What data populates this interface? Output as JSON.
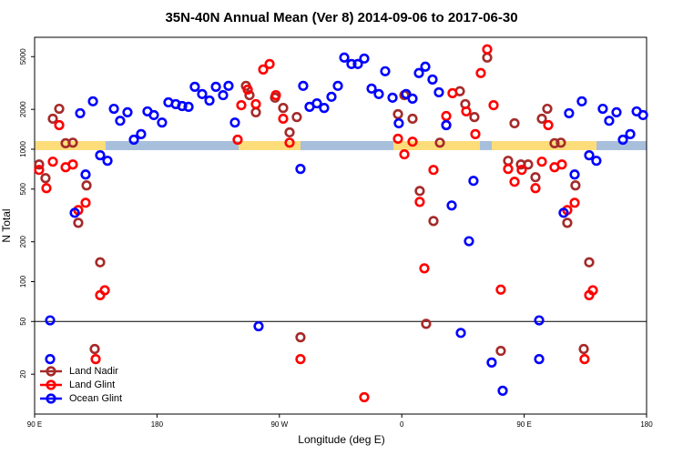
{
  "chart_data": {
    "type": "scatter",
    "title": "35N-40N Annual Mean (Ver 8)   2014-09-06 to 2017-06-30",
    "x_label": "Longitude (deg E)",
    "y_label": "N Total",
    "xlim": [
      90,
      540
    ],
    "xticks": [
      {
        "value": 90,
        "label": "90 E"
      },
      180,
      {
        "value": 270,
        "label": "90 W"
      },
      {
        "value": 360,
        "label": "0"
      },
      {
        "value": 450,
        "label": "90 E"
      },
      {
        "value": 540,
        "label": "180"
      }
    ],
    "ylim": [
      10,
      7000
    ],
    "y_log": true,
    "yticks": [
      20,
      50,
      100,
      200,
      500,
      1000,
      2000,
      5000
    ],
    "hline": 50,
    "legend": "bottom-left",
    "series": [
      {
        "name": "Land Nadir",
        "color": "#a52a2a",
        "x": [
          93.3,
          98.0,
          103.4,
          108.1,
          112.8,
          118.1,
          122.1,
          128.2,
          138.2,
          245.4,
          248.0,
          252.7,
          266.8,
          272.8,
          277.5,
          282.8,
          285.5,
          357.2,
          361.9,
          367.9,
          373.2,
          383.3,
          388.0,
          392.7,
          402.7,
          406.7,
          413.4,
          422.8,
          432.8,
          438.2,
          442.9,
          447.6,
          452.9,
          458.3,
          463.0,
          467.0,
          472.3,
          477.0,
          481.7,
          487.7,
          497.8,
          493.8,
          134.2,
          377.9
        ],
        "values": [
          767,
          605,
          1700,
          2020,
          1110,
          1120,
          278,
          533,
          140,
          3010,
          2560,
          1900,
          2450,
          2050,
          1340,
          1750,
          38,
          1840,
          2560,
          1700,
          484,
          287,
          1120,
          1520,
          2740,
          2190,
          1750,
          4920,
          30,
          818,
          1570,
          767,
          767,
          615,
          1700,
          2020,
          1110,
          1120,
          278,
          533,
          140,
          31,
          31,
          48
        ]
      },
      {
        "name": "Land Glint",
        "color": "#ff0000",
        "x": [
          93.3,
          98.7,
          103.4,
          108.1,
          112.8,
          118.1,
          122.1,
          127.5,
          134.9,
          138.2,
          141.6,
          239.3,
          242.0,
          246.7,
          252.7,
          258.1,
          262.8,
          267.4,
          272.8,
          277.5,
          285.5,
          332.4,
          357.2,
          361.9,
          367.9,
          373.2,
          376.6,
          383.3,
          392.7,
          397.3,
          407.4,
          414.1,
          418.1,
          422.8,
          427.5,
          432.8,
          438.2,
          442.9,
          448.2,
          458.3,
          463.0,
          467.7,
          472.3,
          477.7,
          481.7,
          487.1,
          494.4,
          497.8,
          500.5
        ],
        "values": [
          698,
          508,
          805,
          1520,
          731,
          767,
          347,
          394,
          26,
          79,
          86,
          1180,
          2150,
          2820,
          2190,
          4000,
          4400,
          2560,
          1700,
          1120,
          26,
          13.4,
          1200,
          915,
          1140,
          400,
          126,
          698,
          1780,
          2650,
          1930,
          1300,
          3760,
          5680,
          2150,
          87,
          710,
          568,
          698,
          508,
          805,
          1520,
          731,
          767,
          347,
          394,
          26,
          79,
          86
        ]
      },
      {
        "name": "Ocean Glint",
        "color": "#0000ff",
        "x": [
          101.4,
          101.4,
          119.5,
          123.5,
          127.5,
          132.9,
          138.2,
          143.6,
          148.3,
          152.9,
          158.3,
          163.0,
          168.3,
          173.0,
          177.7,
          183.7,
          188.4,
          193.8,
          198.5,
          203.2,
          207.8,
          213.2,
          218.6,
          223.3,
          228.6,
          232.6,
          237.3,
          254.7,
          285.5,
          287.5,
          292.2,
          297.6,
          302.9,
          308.3,
          313.0,
          317.7,
          323.0,
          327.7,
          332.4,
          337.8,
          343.1,
          347.8,
          353.2,
          357.8,
          363.2,
          367.9,
          372.6,
          377.3,
          382.6,
          387.3,
          392.7,
          396.7,
          403.4,
          409.4,
          412.7,
          426.1,
          434.2,
          461.0,
          461.0,
          479.0,
          483.0,
          487.1,
          492.4,
          497.8,
          503.1,
          507.8,
          512.5,
          517.9,
          522.6,
          528.0,
          532.7,
          537.4
        ],
        "values": [
          26,
          51,
          331,
          1870,
          644,
          2300,
          900,
          818,
          2020,
          1640,
          1900,
          1180,
          1300,
          1930,
          1810,
          1590,
          2260,
          2190,
          2120,
          2090,
          2960,
          2610,
          2330,
          2960,
          2560,
          3010,
          1590,
          46,
          710,
          3010,
          2090,
          2220,
          2050,
          2490,
          3010,
          4920,
          4400,
          4400,
          4840,
          2870,
          2610,
          3880,
          2450,
          1570,
          2610,
          2410,
          3760,
          4200,
          3360,
          2690,
          1520,
          376,
          41,
          202,
          577,
          24.5,
          15,
          51,
          26,
          331,
          1870,
          644,
          2300,
          900,
          818,
          2020,
          1640,
          1900,
          1180,
          1300,
          1930,
          1810
        ]
      }
    ]
  }
}
